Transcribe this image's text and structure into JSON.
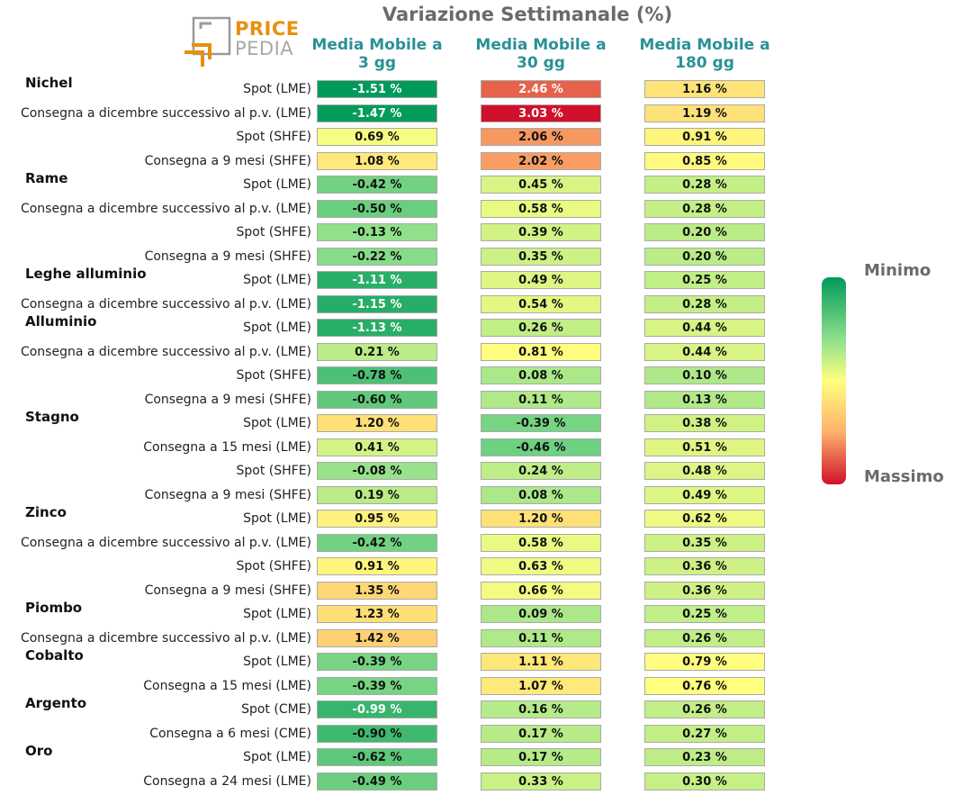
{
  "title": "Variazione Settimanale (%)",
  "logo": {
    "line1": "PRICE",
    "line2": "PEDIA"
  },
  "columns": [
    "Media Mobile a\n3 gg",
    "Media Mobile a\n30 gg",
    "Media Mobile a\n180 gg"
  ],
  "legend": {
    "min_label": "Minimo",
    "max_label": "Massimo"
  },
  "chart_data": {
    "type": "table",
    "value_unit": "%",
    "colors": {
      "min": "#009a5a",
      "mid": "#ffff80",
      "max": "#d0112b"
    },
    "groups": [
      {
        "name": "Nichel",
        "rows": [
          {
            "label": "Spot (LME)",
            "values": [
              -1.51,
              2.46,
              1.16
            ]
          },
          {
            "label": "Consegna a dicembre successivo al p.v. (LME)",
            "values": [
              -1.47,
              3.03,
              1.19
            ]
          },
          {
            "label": "Spot (SHFE)",
            "values": [
              0.69,
              2.06,
              0.91
            ]
          },
          {
            "label": "Consegna a 9 mesi (SHFE)",
            "values": [
              1.08,
              2.02,
              0.85
            ]
          }
        ]
      },
      {
        "name": "Rame",
        "rows": [
          {
            "label": "Spot (LME)",
            "values": [
              -0.42,
              0.45,
              0.28
            ]
          },
          {
            "label": "Consegna a dicembre successivo al p.v. (LME)",
            "values": [
              -0.5,
              0.58,
              0.28
            ]
          },
          {
            "label": "Spot (SHFE)",
            "values": [
              -0.13,
              0.39,
              0.2
            ]
          },
          {
            "label": "Consegna a 9 mesi (SHFE)",
            "values": [
              -0.22,
              0.35,
              0.2
            ]
          }
        ]
      },
      {
        "name": "Leghe alluminio",
        "rows": [
          {
            "label": "Spot (LME)",
            "values": [
              -1.11,
              0.49,
              0.25
            ]
          },
          {
            "label": "Consegna a dicembre successivo al p.v. (LME)",
            "values": [
              -1.15,
              0.54,
              0.28
            ]
          }
        ]
      },
      {
        "name": "Alluminio",
        "rows": [
          {
            "label": "Spot (LME)",
            "values": [
              -1.13,
              0.26,
              0.44
            ]
          },
          {
            "label": "Consegna a dicembre successivo al p.v. (LME)",
            "values": [
              0.21,
              0.81,
              0.44
            ]
          },
          {
            "label": "Spot (SHFE)",
            "values": [
              -0.78,
              0.08,
              0.1
            ]
          },
          {
            "label": "Consegna a 9 mesi (SHFE)",
            "values": [
              -0.6,
              0.11,
              0.13
            ]
          }
        ]
      },
      {
        "name": "Stagno",
        "rows": [
          {
            "label": "Spot (LME)",
            "values": [
              1.2,
              -0.39,
              0.38
            ]
          },
          {
            "label": "Consegna a 15 mesi (LME)",
            "values": [
              0.41,
              -0.46,
              0.51
            ]
          },
          {
            "label": "Spot (SHFE)",
            "values": [
              -0.08,
              0.24,
              0.48
            ]
          },
          {
            "label": "Consegna a 9 mesi (SHFE)",
            "values": [
              0.19,
              0.08,
              0.49
            ]
          }
        ]
      },
      {
        "name": "Zinco",
        "rows": [
          {
            "label": "Spot (LME)",
            "values": [
              0.95,
              1.2,
              0.62
            ]
          },
          {
            "label": "Consegna a dicembre successivo al p.v. (LME)",
            "values": [
              -0.42,
              0.58,
              0.35
            ]
          },
          {
            "label": "Spot (SHFE)",
            "values": [
              0.91,
              0.63,
              0.36
            ]
          },
          {
            "label": "Consegna a 9 mesi (SHFE)",
            "values": [
              1.35,
              0.66,
              0.36
            ]
          }
        ]
      },
      {
        "name": "Piombo",
        "rows": [
          {
            "label": "Spot (LME)",
            "values": [
              1.23,
              0.09,
              0.25
            ]
          },
          {
            "label": "Consegna a dicembre successivo al p.v. (LME)",
            "values": [
              1.42,
              0.11,
              0.26
            ]
          }
        ]
      },
      {
        "name": "Cobalto",
        "rows": [
          {
            "label": "Spot (LME)",
            "values": [
              -0.39,
              1.11,
              0.79
            ]
          },
          {
            "label": "Consegna a 15 mesi (LME)",
            "values": [
              -0.39,
              1.07,
              0.76
            ]
          }
        ]
      },
      {
        "name": "Argento",
        "rows": [
          {
            "label": "Spot (CME)",
            "values": [
              -0.99,
              0.16,
              0.26
            ]
          },
          {
            "label": "Consegna a 6 mesi (CME)",
            "values": [
              -0.9,
              0.17,
              0.27
            ]
          }
        ]
      },
      {
        "name": "Oro",
        "rows": [
          {
            "label": "Spot (LME)",
            "values": [
              -0.62,
              0.17,
              0.23
            ]
          },
          {
            "label": "Consegna a 24 mesi (LME)",
            "values": [
              -0.49,
              0.33,
              0.3
            ]
          }
        ]
      }
    ]
  }
}
